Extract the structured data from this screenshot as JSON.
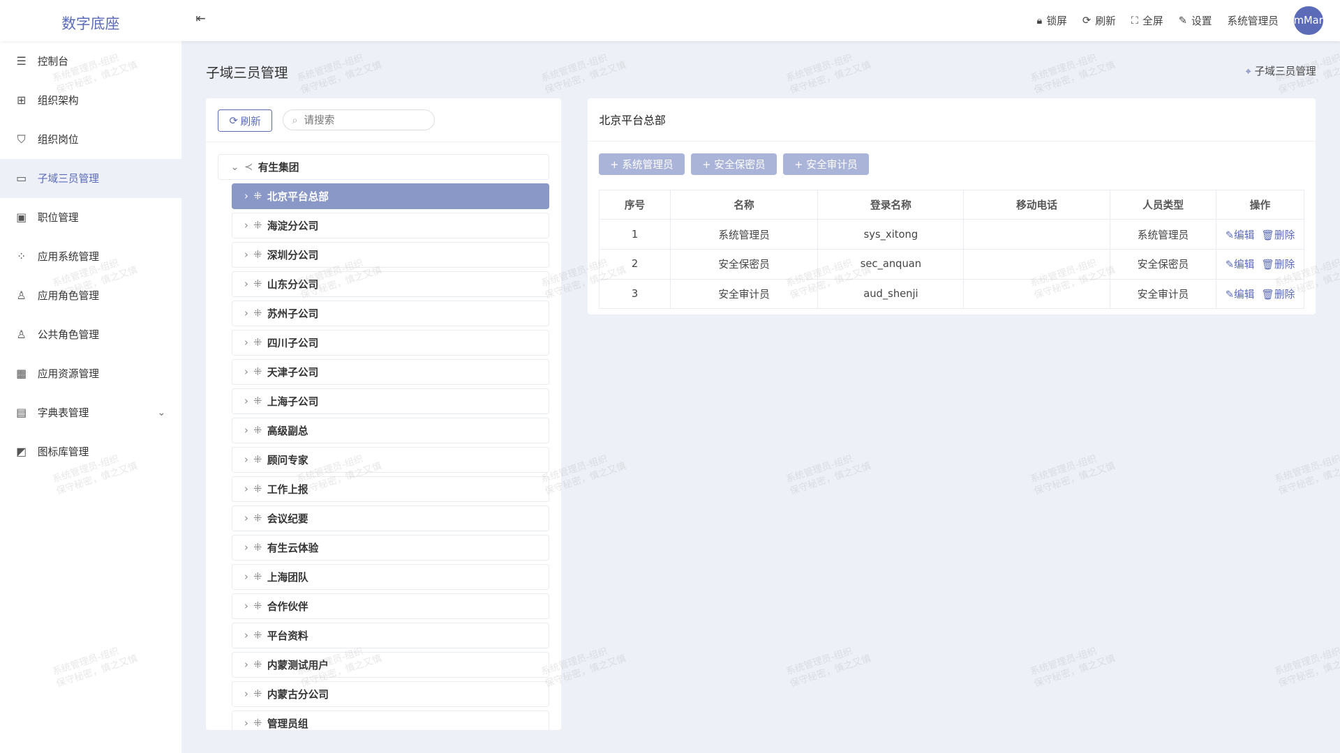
{
  "app": {
    "title": "数字底座",
    "collapse_icon": "menu-fold-icon"
  },
  "header": {
    "tools": [
      {
        "label": "锁屏",
        "icon": "lock-icon"
      },
      {
        "label": "刷新",
        "icon": "refresh-icon"
      },
      {
        "label": "全屏",
        "icon": "fullscreen-icon"
      },
      {
        "label": "设置",
        "icon": "edit-icon"
      }
    ],
    "user": "系统管理员",
    "avatar": "mMar"
  },
  "sidebar": {
    "items": [
      {
        "label": "控制台",
        "icon": "sliders-icon"
      },
      {
        "label": "组织架构",
        "icon": "org-tree-icon"
      },
      {
        "label": "组织岗位",
        "icon": "shield-user-icon"
      },
      {
        "label": "子域三员管理",
        "icon": "window-icon",
        "active": true
      },
      {
        "label": "职位管理",
        "icon": "id-card-icon"
      },
      {
        "label": "应用系统管理",
        "icon": "apps-icon"
      },
      {
        "label": "应用角色管理",
        "icon": "user-role-icon"
      },
      {
        "label": "公共角色管理",
        "icon": "user-list-icon"
      },
      {
        "label": "应用资源管理",
        "icon": "grid-icon"
      },
      {
        "label": "字典表管理",
        "icon": "book-icon",
        "has_children": true
      },
      {
        "label": "图标库管理",
        "icon": "image-icon"
      }
    ]
  },
  "page": {
    "title": "子域三员管理",
    "breadcrumb": "子域三员管理"
  },
  "tree_panel": {
    "refresh_label": "刷新",
    "search_placeholder": "请搜索",
    "root": "有生集团",
    "children": [
      "北京平台总部",
      "海淀分公司",
      "深圳分公司",
      "山东分公司",
      "苏州子公司",
      "四川子公司",
      "天津子公司",
      "上海子公司",
      "高级副总",
      "顾问专家",
      "工作上报",
      "会议纪要",
      "有生云体验",
      "上海团队",
      "合作伙伴",
      "平台资料",
      "内蒙测试用户",
      "内蒙古分公司",
      "管理员组"
    ],
    "selected": "北京平台总部"
  },
  "detail": {
    "title": "北京平台总部",
    "add_buttons": [
      "+ 系统管理员",
      "+ 安全保密员",
      "+ 安全审计员"
    ],
    "columns": [
      "序号",
      "名称",
      "登录名称",
      "移动电话",
      "人员类型",
      "操作"
    ],
    "rows": [
      {
        "no": "1",
        "name": "系统管理员",
        "login": "sys_xitong",
        "phone": "",
        "type": "系统管理员"
      },
      {
        "no": "2",
        "name": "安全保密员",
        "login": "sec_anquan",
        "phone": "",
        "type": "安全保密员"
      },
      {
        "no": "3",
        "name": "安全审计员",
        "login": "aud_shenji",
        "phone": "",
        "type": "安全审计员"
      }
    ],
    "edit_label": "编辑",
    "delete_label": "删除"
  },
  "watermark": {
    "line1": "系统管理员-组织",
    "line2": "保守秘密，慎之又慎"
  },
  "colors": {
    "accent": "#5b6bb8",
    "selected_node": "#8a98c8",
    "add_button": "#aab4d8",
    "background": "#edf0f7"
  }
}
